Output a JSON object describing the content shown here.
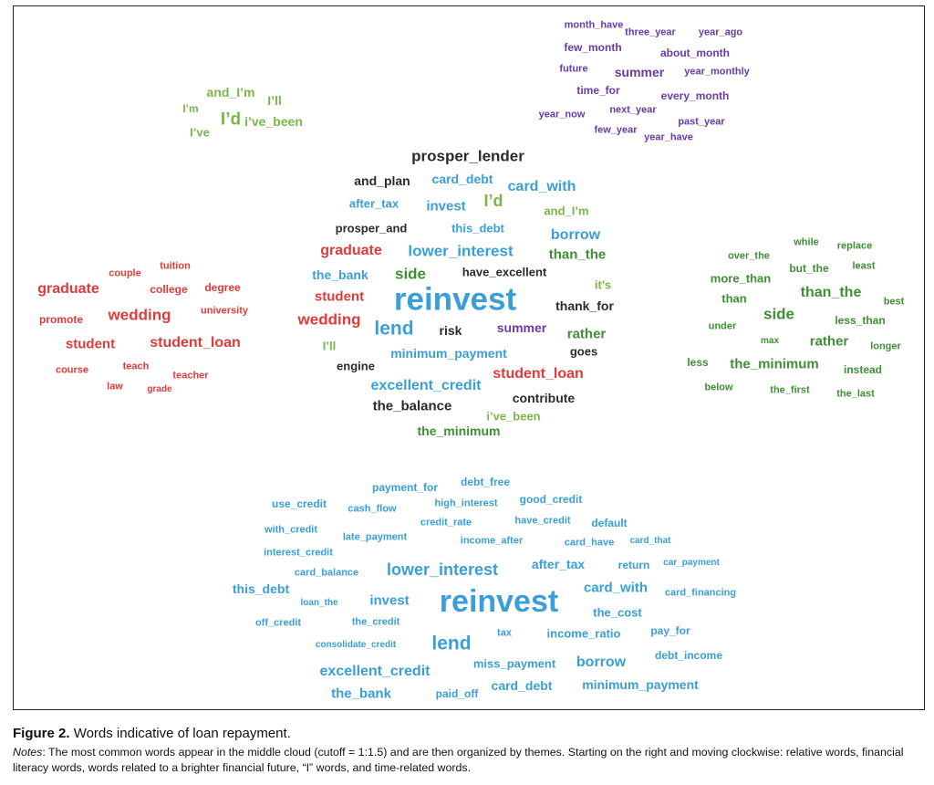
{
  "figure": {
    "label": "Figure 2.",
    "title": "Words indicative of loan repayment.",
    "notes_label": "Notes",
    "notes_text": ": The most common words appear in the middle cloud (cutoff = 1:1.5) and are then organized by themes. Starting on the right and moving clockwise: relative words, financial literacy words, words related to a brighter financial future, “I” words, and time-related words."
  },
  "colors": {
    "dark": "#2b2b2b",
    "blue": "#3a9fd8",
    "green": "#3f8f35",
    "lightgreen": "#7ab648",
    "red": "#e03a3a",
    "purple": "#6a3aa8"
  },
  "clouds": {
    "time": [
      {
        "text": "month_have",
        "c": "purple",
        "s": 11
      },
      {
        "text": "three_year",
        "c": "purple",
        "s": 11
      },
      {
        "text": "year_ago",
        "c": "purple",
        "s": 11
      },
      {
        "text": "few_month",
        "c": "purple",
        "s": 12
      },
      {
        "text": "about_month",
        "c": "purple",
        "s": 12
      },
      {
        "text": "future",
        "c": "purple",
        "s": 11
      },
      {
        "text": "summer",
        "c": "purple",
        "s": 14
      },
      {
        "text": "year_monthly",
        "c": "purple",
        "s": 11
      },
      {
        "text": "time_for",
        "c": "purple",
        "s": 12
      },
      {
        "text": "every_month",
        "c": "purple",
        "s": 12
      },
      {
        "text": "year_now",
        "c": "purple",
        "s": 11
      },
      {
        "text": "next_year",
        "c": "purple",
        "s": 11
      },
      {
        "text": "past_year",
        "c": "purple",
        "s": 11
      },
      {
        "text": "few_year",
        "c": "purple",
        "s": 11
      },
      {
        "text": "year_have",
        "c": "purple",
        "s": 11
      }
    ],
    "i_words": [
      {
        "text": "and_I’m",
        "c": "lightgreen",
        "s": 14
      },
      {
        "text": "I’ll",
        "c": "lightgreen",
        "s": 14
      },
      {
        "text": "I’m",
        "c": "lightgreen",
        "s": 12
      },
      {
        "text": "I’d",
        "c": "lightgreen",
        "s": 19
      },
      {
        "text": "i’ve_been",
        "c": "lightgreen",
        "s": 14
      },
      {
        "text": "I’ve",
        "c": "lightgreen",
        "s": 13
      }
    ],
    "central": [
      {
        "text": "prosper_lender",
        "c": "dark",
        "s": 17
      },
      {
        "text": "and_plan",
        "c": "dark",
        "s": 14
      },
      {
        "text": "card_debt",
        "c": "blue",
        "s": 14
      },
      {
        "text": "card_with",
        "c": "blue",
        "s": 16
      },
      {
        "text": "after_tax",
        "c": "blue",
        "s": 13
      },
      {
        "text": "invest",
        "c": "blue",
        "s": 15
      },
      {
        "text": "I’d",
        "c": "lightgreen",
        "s": 18
      },
      {
        "text": "and_I’m",
        "c": "lightgreen",
        "s": 13
      },
      {
        "text": "prosper_and",
        "c": "dark",
        "s": 13
      },
      {
        "text": "this_debt",
        "c": "blue",
        "s": 13
      },
      {
        "text": "borrow",
        "c": "blue",
        "s": 16
      },
      {
        "text": "graduate",
        "c": "red",
        "s": 16
      },
      {
        "text": "lower_interest",
        "c": "blue",
        "s": 17
      },
      {
        "text": "than_the",
        "c": "green",
        "s": 15
      },
      {
        "text": "the_bank",
        "c": "blue",
        "s": 14
      },
      {
        "text": "side",
        "c": "green",
        "s": 17
      },
      {
        "text": "have_excellent",
        "c": "dark",
        "s": 13
      },
      {
        "text": "it’s",
        "c": "lightgreen",
        "s": 13
      },
      {
        "text": "student",
        "c": "red",
        "s": 15
      },
      {
        "text": "reinvest",
        "c": "blue",
        "s": 35
      },
      {
        "text": "thank_for",
        "c": "dark",
        "s": 14
      },
      {
        "text": "wedding",
        "c": "red",
        "s": 17
      },
      {
        "text": "lend",
        "c": "blue",
        "s": 21
      },
      {
        "text": "risk",
        "c": "dark",
        "s": 14
      },
      {
        "text": "summer",
        "c": "purple",
        "s": 14
      },
      {
        "text": "rather",
        "c": "green",
        "s": 15
      },
      {
        "text": "I’ll",
        "c": "lightgreen",
        "s": 13
      },
      {
        "text": "minimum_payment",
        "c": "blue",
        "s": 14
      },
      {
        "text": "goes",
        "c": "dark",
        "s": 13
      },
      {
        "text": "engine",
        "c": "dark",
        "s": 13
      },
      {
        "text": "student_loan",
        "c": "red",
        "s": 16
      },
      {
        "text": "excellent_credit",
        "c": "blue",
        "s": 16
      },
      {
        "text": "contribute",
        "c": "dark",
        "s": 14
      },
      {
        "text": "the_balance",
        "c": "dark",
        "s": 15
      },
      {
        "text": "i’ve_been",
        "c": "lightgreen",
        "s": 13
      },
      {
        "text": "the_minimum",
        "c": "green",
        "s": 14
      }
    ],
    "future": [
      {
        "text": "tuition",
        "c": "red",
        "s": 11
      },
      {
        "text": "couple",
        "c": "red",
        "s": 11
      },
      {
        "text": "graduate",
        "c": "red",
        "s": 16
      },
      {
        "text": "college",
        "c": "red",
        "s": 12
      },
      {
        "text": "degree",
        "c": "red",
        "s": 12
      },
      {
        "text": "university",
        "c": "red",
        "s": 11
      },
      {
        "text": "promote",
        "c": "red",
        "s": 12
      },
      {
        "text": "wedding",
        "c": "red",
        "s": 17
      },
      {
        "text": "student",
        "c": "red",
        "s": 15
      },
      {
        "text": "student_loan",
        "c": "red",
        "s": 16
      },
      {
        "text": "course",
        "c": "red",
        "s": 11
      },
      {
        "text": "teach",
        "c": "red",
        "s": 11
      },
      {
        "text": "teacher",
        "c": "red",
        "s": 11
      },
      {
        "text": "law",
        "c": "red",
        "s": 11
      },
      {
        "text": "grade",
        "c": "red",
        "s": 10
      }
    ],
    "relative": [
      {
        "text": "while",
        "c": "green",
        "s": 11
      },
      {
        "text": "replace",
        "c": "green",
        "s": 11
      },
      {
        "text": "over_the",
        "c": "green",
        "s": 11
      },
      {
        "text": "but_the",
        "c": "green",
        "s": 12
      },
      {
        "text": "least",
        "c": "green",
        "s": 11
      },
      {
        "text": "more_than",
        "c": "green",
        "s": 13
      },
      {
        "text": "than",
        "c": "green",
        "s": 13
      },
      {
        "text": "than_the",
        "c": "green",
        "s": 16
      },
      {
        "text": "best",
        "c": "green",
        "s": 11
      },
      {
        "text": "side",
        "c": "green",
        "s": 17
      },
      {
        "text": "less_than",
        "c": "green",
        "s": 12
      },
      {
        "text": "under",
        "c": "green",
        "s": 11
      },
      {
        "text": "max",
        "c": "green",
        "s": 10
      },
      {
        "text": "rather",
        "c": "green",
        "s": 15
      },
      {
        "text": "longer",
        "c": "green",
        "s": 11
      },
      {
        "text": "less",
        "c": "green",
        "s": 12
      },
      {
        "text": "the_minimum",
        "c": "green",
        "s": 15
      },
      {
        "text": "instead",
        "c": "green",
        "s": 12
      },
      {
        "text": "below",
        "c": "green",
        "s": 11
      },
      {
        "text": "the_first",
        "c": "green",
        "s": 11
      },
      {
        "text": "the_last",
        "c": "green",
        "s": 11
      }
    ],
    "literacy": [
      {
        "text": "payment_for",
        "c": "blue",
        "s": 12
      },
      {
        "text": "debt_free",
        "c": "blue",
        "s": 12
      },
      {
        "text": "use_credit",
        "c": "blue",
        "s": 12
      },
      {
        "text": "cash_flow",
        "c": "blue",
        "s": 11
      },
      {
        "text": "high_interest",
        "c": "blue",
        "s": 11
      },
      {
        "text": "good_credit",
        "c": "blue",
        "s": 12
      },
      {
        "text": "with_credit",
        "c": "blue",
        "s": 11
      },
      {
        "text": "credit_rate",
        "c": "blue",
        "s": 11
      },
      {
        "text": "have_credit",
        "c": "blue",
        "s": 11
      },
      {
        "text": "default",
        "c": "blue",
        "s": 12
      },
      {
        "text": "late_payment",
        "c": "blue",
        "s": 11
      },
      {
        "text": "income_after",
        "c": "blue",
        "s": 11
      },
      {
        "text": "card_have",
        "c": "blue",
        "s": 11
      },
      {
        "text": "card_that",
        "c": "blue",
        "s": 10
      },
      {
        "text": "interest_credit",
        "c": "blue",
        "s": 11
      },
      {
        "text": "after_tax",
        "c": "blue",
        "s": 14
      },
      {
        "text": "return",
        "c": "blue",
        "s": 12
      },
      {
        "text": "car_payment",
        "c": "blue",
        "s": 10
      },
      {
        "text": "card_balance",
        "c": "blue",
        "s": 11
      },
      {
        "text": "lower_interest",
        "c": "blue",
        "s": 18
      },
      {
        "text": "this_debt",
        "c": "blue",
        "s": 14
      },
      {
        "text": "card_with",
        "c": "blue",
        "s": 15
      },
      {
        "text": "card_financing",
        "c": "blue",
        "s": 11
      },
      {
        "text": "loan_the",
        "c": "blue",
        "s": 10
      },
      {
        "text": "invest",
        "c": "blue",
        "s": 15
      },
      {
        "text": "reinvest",
        "c": "blue",
        "s": 34
      },
      {
        "text": "the_cost",
        "c": "blue",
        "s": 13
      },
      {
        "text": "off_credit",
        "c": "blue",
        "s": 11
      },
      {
        "text": "the_credit",
        "c": "blue",
        "s": 11
      },
      {
        "text": "tax",
        "c": "blue",
        "s": 11
      },
      {
        "text": "income_ratio",
        "c": "blue",
        "s": 13
      },
      {
        "text": "pay_for",
        "c": "blue",
        "s": 12
      },
      {
        "text": "consolidate_credit",
        "c": "blue",
        "s": 10
      },
      {
        "text": "lend",
        "c": "blue",
        "s": 21
      },
      {
        "text": "debt_income",
        "c": "blue",
        "s": 12
      },
      {
        "text": "miss_payment",
        "c": "blue",
        "s": 13
      },
      {
        "text": "borrow",
        "c": "blue",
        "s": 16
      },
      {
        "text": "excellent_credit",
        "c": "blue",
        "s": 16
      },
      {
        "text": "card_debt",
        "c": "blue",
        "s": 14
      },
      {
        "text": "minimum_payment",
        "c": "blue",
        "s": 14
      },
      {
        "text": "the_bank",
        "c": "blue",
        "s": 15
      },
      {
        "text": "paid_off",
        "c": "blue",
        "s": 12
      }
    ]
  }
}
